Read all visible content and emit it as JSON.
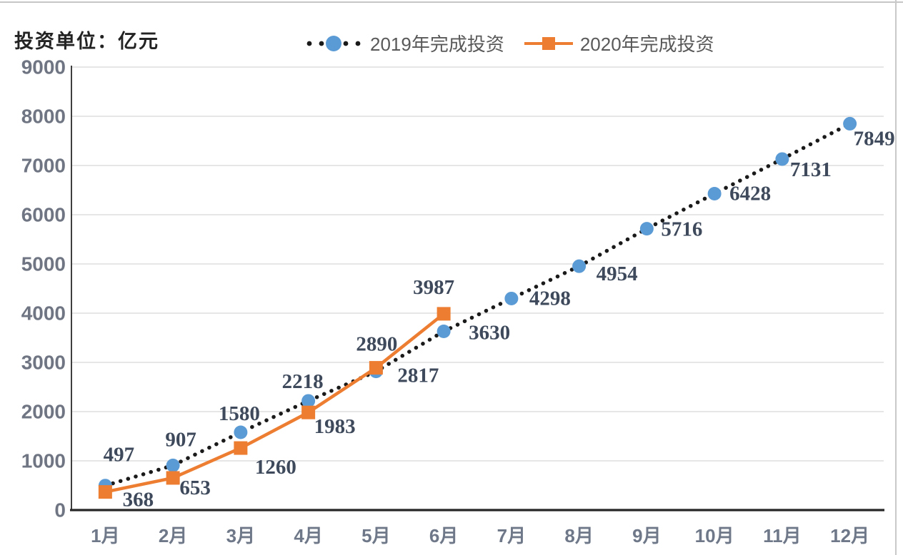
{
  "chart_data": {
    "type": "line",
    "title": "投资单位：亿元",
    "unit": "亿元",
    "categories": [
      "1月",
      "2月",
      "3月",
      "4月",
      "5月",
      "6月",
      "7月",
      "8月",
      "9月",
      "10月",
      "11月",
      "12月"
    ],
    "series": [
      {
        "name": "2019年完成投资",
        "marker": "circle",
        "marker_color": "#5B9BD5",
        "line_color": "#1A1A1A",
        "line_style": "dotted",
        "values": [
          497,
          907,
          1580,
          2218,
          2817,
          3630,
          4298,
          4954,
          5716,
          6428,
          7131,
          7849
        ]
      },
      {
        "name": "2020年完成投资",
        "marker": "square",
        "marker_color": "#ED7D31",
        "line_color": "#ED7D31",
        "line_style": "solid",
        "values": [
          368,
          653,
          1260,
          1983,
          2890,
          3987
        ]
      }
    ],
    "ylim": [
      0,
      9000
    ],
    "yticks": [
      0,
      1000,
      2000,
      3000,
      4000,
      5000,
      6000,
      7000,
      8000,
      9000
    ],
    "grid": true,
    "legend_position": "top"
  },
  "colors": {
    "grid": "#D8D8D8",
    "axis_bottom": "#262626",
    "axis_left": "#3F3F3F",
    "ytick_text": "#6F7582",
    "xtick_text": "#6E7888",
    "data_label": "#3E4A5C",
    "legend_text": "#595959",
    "frame": "#C8C8C8",
    "background": "#FFFFFF"
  }
}
